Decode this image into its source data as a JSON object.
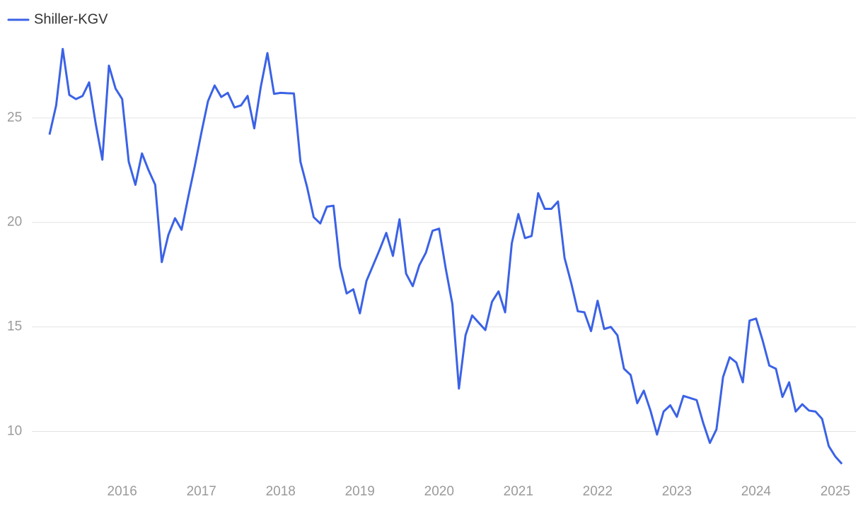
{
  "chart_data": {
    "type": "line",
    "series": [
      {
        "name": "Shiller-KGV",
        "color": "#3b62e6",
        "x": [
          2015.083,
          2015.167,
          2015.25,
          2015.333,
          2015.417,
          2015.5,
          2015.583,
          2015.667,
          2015.75,
          2015.833,
          2015.917,
          2016,
          2016.083,
          2016.167,
          2016.25,
          2016.333,
          2016.417,
          2016.5,
          2016.583,
          2016.667,
          2016.75,
          2016.833,
          2016.917,
          2017,
          2017.083,
          2017.167,
          2017.25,
          2017.333,
          2017.417,
          2017.5,
          2017.583,
          2017.667,
          2017.75,
          2017.833,
          2017.917,
          2018,
          2018.083,
          2018.167,
          2018.25,
          2018.333,
          2018.417,
          2018.5,
          2018.583,
          2018.667,
          2018.75,
          2018.833,
          2018.917,
          2019,
          2019.083,
          2019.167,
          2019.25,
          2019.333,
          2019.417,
          2019.5,
          2019.583,
          2019.667,
          2019.75,
          2019.833,
          2019.917,
          2020,
          2020.083,
          2020.167,
          2020.25,
          2020.333,
          2020.417,
          2020.5,
          2020.583,
          2020.667,
          2020.75,
          2020.833,
          2020.917,
          2021,
          2021.083,
          2021.167,
          2021.25,
          2021.333,
          2021.417,
          2021.5,
          2021.583,
          2021.667,
          2021.75,
          2021.833,
          2021.917,
          2022,
          2022.083,
          2022.167,
          2022.25,
          2022.333,
          2022.417,
          2022.5,
          2022.583,
          2022.667,
          2022.75,
          2022.833,
          2022.917,
          2023,
          2023.083,
          2023.167,
          2023.25,
          2023.333,
          2023.417,
          2023.5,
          2023.583,
          2023.667,
          2023.75,
          2023.833,
          2023.917,
          2024,
          2024.083,
          2024.167,
          2024.25,
          2024.333,
          2024.417,
          2024.5,
          2024.583,
          2024.667,
          2024.75,
          2024.833,
          2024.917,
          2025,
          2025.083
        ],
        "values": [
          24.2,
          25.6,
          28.3,
          26.1,
          25.9,
          26.05,
          26.7,
          24.7,
          23.0,
          27.5,
          26.4,
          25.9,
          22.9,
          21.8,
          23.3,
          22.5,
          21.8,
          18.1,
          19.4,
          20.2,
          19.65,
          21.2,
          22.7,
          24.3,
          25.8,
          26.55,
          26.0,
          26.2,
          25.5,
          25.6,
          26.05,
          24.5,
          26.5,
          28.1,
          26.15,
          26.2,
          26.18,
          26.17,
          22.9,
          21.7,
          20.25,
          19.95,
          20.75,
          20.8,
          17.9,
          16.6,
          16.8,
          15.65,
          17.2,
          17.95,
          18.7,
          19.5,
          18.4,
          20.15,
          17.55,
          16.95,
          17.95,
          18.55,
          19.6,
          19.7,
          17.8,
          16.1,
          12.05,
          14.6,
          15.55,
          15.2,
          14.85,
          16.2,
          16.7,
          15.7,
          19.0,
          20.4,
          19.25,
          19.35,
          21.4,
          20.65,
          20.65,
          21.0,
          18.3,
          17.1,
          15.75,
          15.7,
          14.8,
          16.25,
          14.9,
          15.0,
          14.6,
          13.0,
          12.7,
          11.35,
          11.95,
          11.0,
          9.85,
          10.95,
          11.25,
          10.7,
          11.7,
          11.6,
          11.5,
          10.4,
          9.45,
          10.1,
          12.6,
          13.55,
          13.3,
          12.35,
          15.3,
          15.4,
          14.35,
          13.15,
          13.0,
          11.65,
          12.35,
          10.95,
          11.3,
          11.0,
          10.95,
          10.6,
          9.3,
          8.8,
          8.45
        ]
      }
    ],
    "xlim": [
      2014.86,
      2025.26
    ],
    "xticks": [
      2016,
      2017,
      2018,
      2019,
      2020,
      2021,
      2022,
      2023,
      2024,
      2025
    ],
    "ylim": [
      7.65,
      28.95
    ],
    "yticks": [
      10,
      15,
      20,
      25
    ],
    "grid": true,
    "legend": "top-left"
  }
}
